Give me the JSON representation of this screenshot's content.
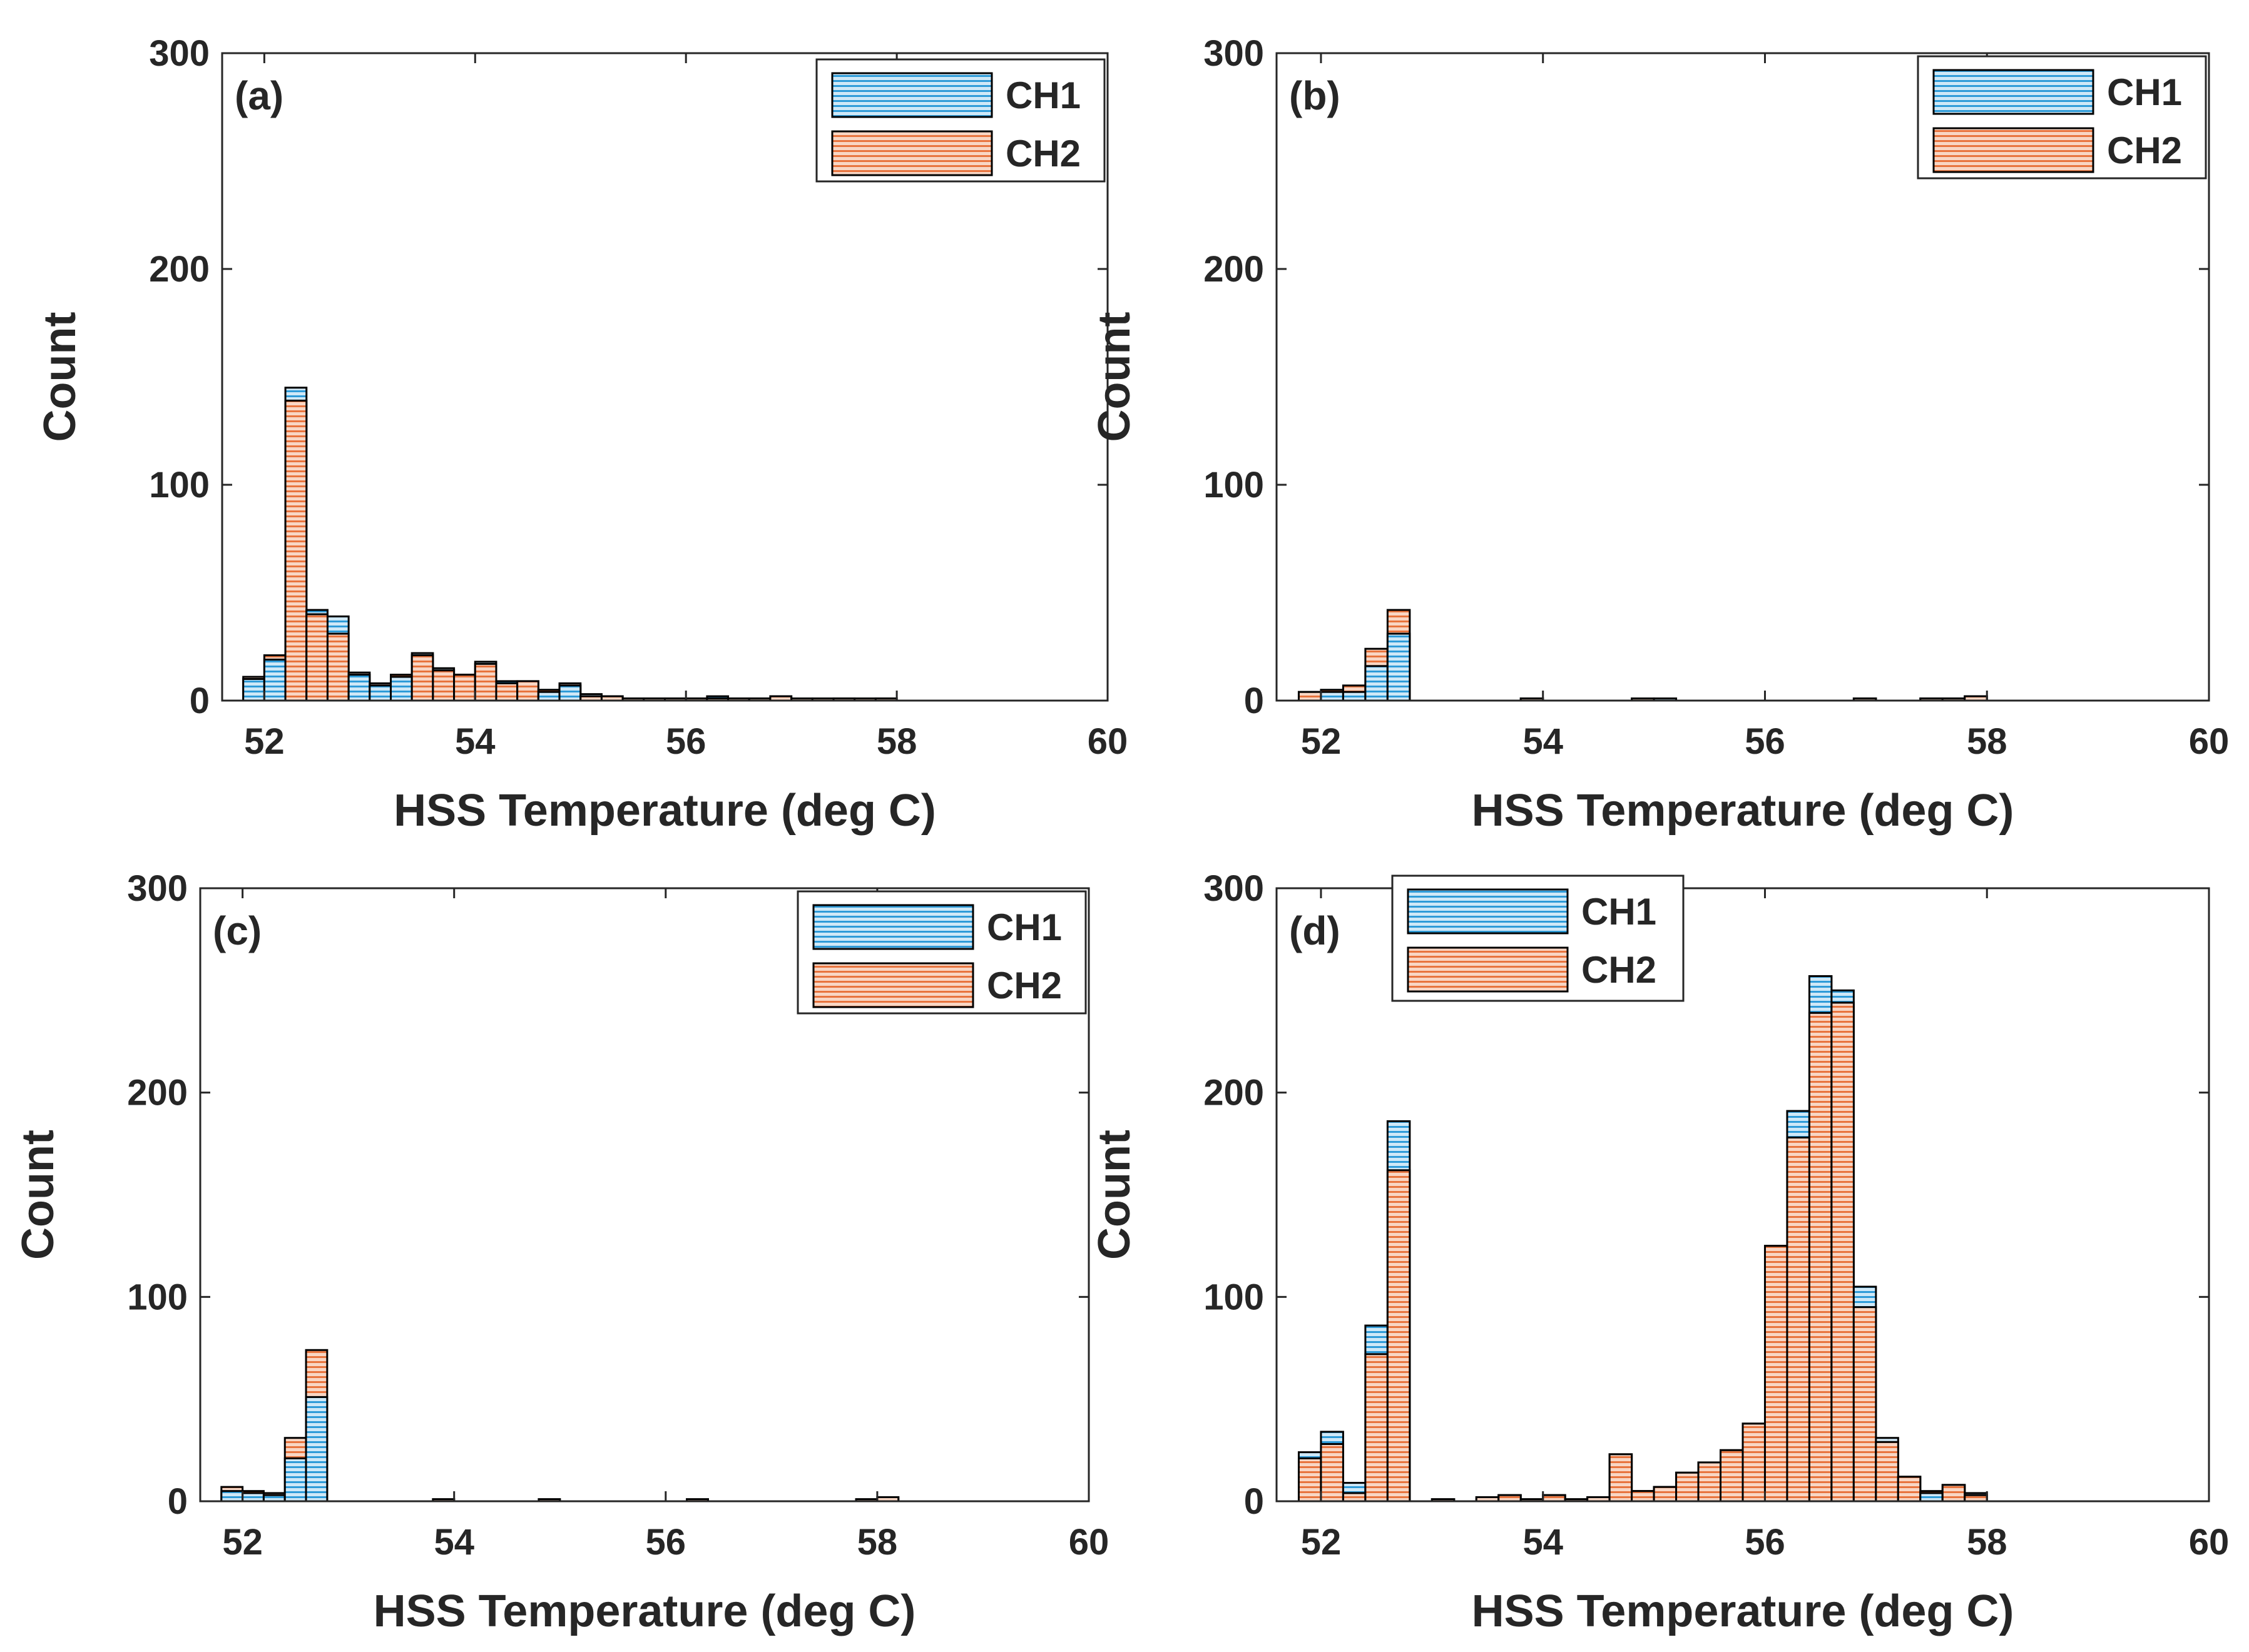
{
  "figure": {
    "series_names": [
      "CH1",
      "CH2"
    ],
    "colors": {
      "ch1_fill": "#cfe8f7",
      "ch1_stripe": "#2e9bd8",
      "ch2_fill": "#f8d6c4",
      "ch2_stripe": "#e8743e",
      "axis": "#262626",
      "frame": "#000000"
    }
  },
  "chart_data": [
    {
      "panel": "(a)",
      "type": "bar",
      "subtype": "overlaid-histogram",
      "xlabel": "HSS Temperature (deg C)",
      "ylabel": "Count",
      "xlim": [
        51.6,
        60
      ],
      "ylim": [
        0,
        300
      ],
      "xticks": [
        52,
        54,
        56,
        58,
        60
      ],
      "yticks": [
        0,
        100,
        200,
        300
      ],
      "legend_position": "top-right",
      "bin_width": 0.2,
      "bin_starts": [
        51.8,
        52.0,
        52.2,
        52.4,
        52.6,
        52.8,
        53.0,
        53.2,
        53.4,
        53.6,
        53.8,
        54.0,
        54.2,
        54.4,
        54.6,
        54.8,
        55.0,
        55.2,
        55.4,
        55.6,
        55.8,
        56.0,
        56.2,
        56.4,
        56.6,
        56.8,
        57.0,
        57.2,
        57.4,
        57.6,
        57.8,
        58.0,
        58.2,
        58.4,
        58.6
      ],
      "series": [
        {
          "name": "CH1",
          "values": [
            10,
            19,
            145,
            42,
            39,
            12,
            7,
            11,
            22,
            15,
            12,
            18,
            9,
            9,
            4,
            7,
            3,
            2,
            1,
            1,
            1,
            1,
            2,
            1,
            1,
            2,
            0,
            0,
            1,
            0,
            1,
            0,
            0,
            0,
            0
          ]
        },
        {
          "name": "CH2",
          "values": [
            11,
            21,
            139,
            40,
            31,
            13,
            8,
            12,
            21,
            14,
            12,
            17,
            8,
            9,
            5,
            8,
            2,
            2,
            1,
            1,
            1,
            1,
            1,
            1,
            1,
            2,
            1,
            1,
            1,
            1,
            1,
            0,
            0,
            0,
            0
          ]
        }
      ]
    },
    {
      "panel": "(b)",
      "type": "bar",
      "subtype": "overlaid-histogram",
      "xlabel": "HSS Temperature (deg C)",
      "ylabel": "Count",
      "xlim": [
        51.6,
        60
      ],
      "ylim": [
        0,
        300
      ],
      "xticks": [
        52,
        54,
        56,
        58,
        60
      ],
      "yticks": [
        0,
        100,
        200,
        300
      ],
      "legend_position": "top-right",
      "bin_width": 0.2,
      "bin_starts": [
        51.8,
        52.0,
        52.2,
        52.4,
        52.6,
        52.8,
        53.0,
        53.2,
        53.4,
        53.6,
        53.8,
        54.0,
        54.2,
        54.4,
        54.6,
        54.8,
        55.0,
        55.2,
        55.4,
        55.6,
        55.8,
        56.0,
        56.2,
        56.4,
        56.6,
        56.8,
        57.0,
        57.2,
        57.4,
        57.6,
        57.8,
        58.0,
        58.2,
        58.4,
        58.6
      ],
      "series": [
        {
          "name": "CH1",
          "values": [
            4,
            4,
            4,
            16,
            31,
            0,
            0,
            0,
            0,
            0,
            1,
            0,
            0,
            0,
            0,
            0,
            1,
            0,
            0,
            0,
            0,
            0,
            0,
            0,
            0,
            1,
            0,
            0,
            1,
            1,
            2,
            0,
            0,
            0,
            0
          ]
        },
        {
          "name": "CH2",
          "values": [
            4,
            5,
            7,
            24,
            42,
            0,
            0,
            0,
            0,
            0,
            1,
            0,
            0,
            0,
            0,
            1,
            0,
            0,
            0,
            0,
            0,
            0,
            0,
            0,
            0,
            1,
            0,
            0,
            1,
            1,
            2,
            0,
            0,
            0,
            0
          ]
        }
      ]
    },
    {
      "panel": "(c)",
      "type": "bar",
      "subtype": "overlaid-histogram",
      "xlabel": "HSS Temperature (deg C)",
      "ylabel": "Count",
      "xlim": [
        51.6,
        60
      ],
      "ylim": [
        0,
        300
      ],
      "xticks": [
        52,
        54,
        56,
        58,
        60
      ],
      "yticks": [
        0,
        100,
        200,
        300
      ],
      "legend_position": "top-right",
      "bin_width": 0.2,
      "bin_starts": [
        51.8,
        52.0,
        52.2,
        52.4,
        52.6,
        52.8,
        53.0,
        53.2,
        53.4,
        53.6,
        53.8,
        54.0,
        54.2,
        54.4,
        54.6,
        54.8,
        55.0,
        55.2,
        55.4,
        55.6,
        55.8,
        56.0,
        56.2,
        56.4,
        56.6,
        56.8,
        57.0,
        57.2,
        57.4,
        57.6,
        57.8,
        58.0,
        58.2,
        58.4,
        58.6
      ],
      "series": [
        {
          "name": "CH1",
          "values": [
            5,
            4,
            3,
            21,
            51,
            0,
            0,
            0,
            0,
            0,
            1,
            0,
            0,
            0,
            0,
            1,
            0,
            0,
            0,
            0,
            0,
            0,
            1,
            0,
            0,
            0,
            0,
            0,
            0,
            0,
            1,
            2,
            0,
            0,
            0
          ]
        },
        {
          "name": "CH2",
          "values": [
            7,
            5,
            4,
            31,
            74,
            0,
            0,
            0,
            0,
            0,
            1,
            0,
            0,
            0,
            0,
            1,
            0,
            0,
            0,
            0,
            0,
            0,
            1,
            0,
            0,
            0,
            0,
            0,
            0,
            0,
            1,
            2,
            0,
            0,
            0
          ]
        }
      ]
    },
    {
      "panel": "(d)",
      "type": "bar",
      "subtype": "overlaid-histogram",
      "xlabel": "HSS Temperature (deg C)",
      "ylabel": "Count",
      "xlim": [
        51.6,
        60
      ],
      "ylim": [
        0,
        300
      ],
      "xticks": [
        52,
        54,
        56,
        58,
        60
      ],
      "yticks": [
        0,
        100,
        200,
        300
      ],
      "legend_position": "top-left",
      "bin_width": 0.2,
      "bin_starts": [
        51.8,
        52.0,
        52.2,
        52.4,
        52.6,
        52.8,
        53.0,
        53.2,
        53.4,
        53.6,
        53.8,
        54.0,
        54.2,
        54.4,
        54.6,
        54.8,
        55.0,
        55.2,
        55.4,
        55.6,
        55.8,
        56.0,
        56.2,
        56.4,
        56.6,
        56.8,
        57.0,
        57.2,
        57.4,
        57.6,
        57.8,
        58.0,
        58.2,
        58.4,
        58.6,
        58.8,
        59.0,
        59.2,
        59.4
      ],
      "series": [
        {
          "name": "CH1",
          "values": [
            24,
            34,
            9,
            86,
            186,
            0,
            1,
            0,
            2,
            3,
            1,
            3,
            1,
            2,
            23,
            5,
            7,
            14,
            19,
            25,
            38,
            125,
            191,
            257,
            250,
            105,
            31,
            12,
            4,
            8,
            4,
            0,
            0,
            0,
            0,
            0,
            0,
            0,
            0
          ]
        },
        {
          "name": "CH2",
          "values": [
            21,
            28,
            4,
            72,
            162,
            0,
            1,
            0,
            2,
            3,
            1,
            3,
            1,
            2,
            23,
            5,
            7,
            14,
            19,
            25,
            38,
            125,
            178,
            239,
            244,
            95,
            29,
            12,
            5,
            8,
            3,
            0,
            0,
            0,
            0,
            0,
            0,
            0,
            0
          ]
        }
      ]
    }
  ]
}
